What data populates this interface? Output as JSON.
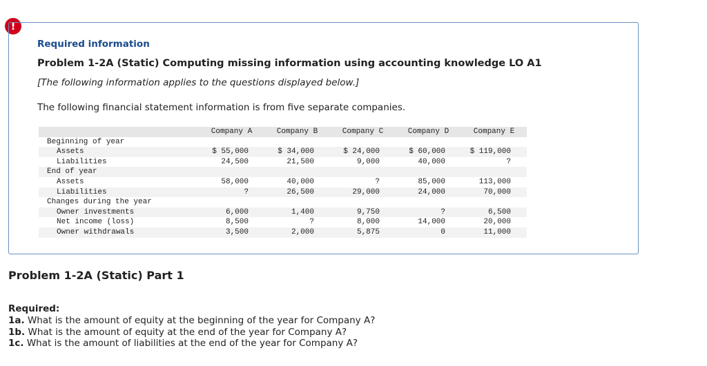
{
  "icon": "!",
  "info": {
    "heading": "Required information",
    "title": "Problem 1-2A (Static) Computing missing information using accounting knowledge LO A1",
    "note": "[The following information applies to the questions displayed below.]",
    "intro": "The following financial statement information is from five separate companies.",
    "table": {
      "columns": [
        "Company A",
        "Company B",
        "Company C",
        "Company D",
        "Company E"
      ],
      "rows": [
        {
          "label": "Beginning of year"
        },
        {
          "label": "Assets",
          "values": [
            "$ 55,000",
            "$ 34,000",
            "$ 24,000",
            "$ 60,000",
            "$ 119,000"
          ]
        },
        {
          "label": "Liabilities",
          "values": [
            "24,500",
            "21,500",
            "9,000",
            "40,000",
            "?"
          ]
        },
        {
          "label": "End of year"
        },
        {
          "label": "Assets",
          "values": [
            "58,000",
            "40,000",
            "?",
            "85,000",
            "113,000"
          ]
        },
        {
          "label": "Liabilities",
          "values": [
            "?",
            "26,500",
            "29,000",
            "24,000",
            "70,000"
          ]
        },
        {
          "label": "Changes during the year"
        },
        {
          "label": "Owner investments",
          "values": [
            "6,000",
            "1,400",
            "9,750",
            "?",
            "6,500"
          ]
        },
        {
          "label": "Net income (loss)",
          "values": [
            "8,500",
            "?",
            "8,000",
            "14,000",
            "20,000"
          ]
        },
        {
          "label": "Owner withdrawals",
          "values": [
            "3,500",
            "2,000",
            "5,875",
            "0",
            "11,000"
          ]
        }
      ]
    }
  },
  "part": {
    "title": "Problem 1-2A (Static) Part 1",
    "required": "Required:",
    "questions": [
      {
        "id": "1a.",
        "text": "What is the amount of equity at the beginning of the year for Company A?"
      },
      {
        "id": "1b.",
        "text": "What is the amount of equity at the end of the year for Company A?"
      },
      {
        "id": "1c.",
        "text": "What is the amount of liabilities at the end of the year for Company A?"
      }
    ]
  }
}
